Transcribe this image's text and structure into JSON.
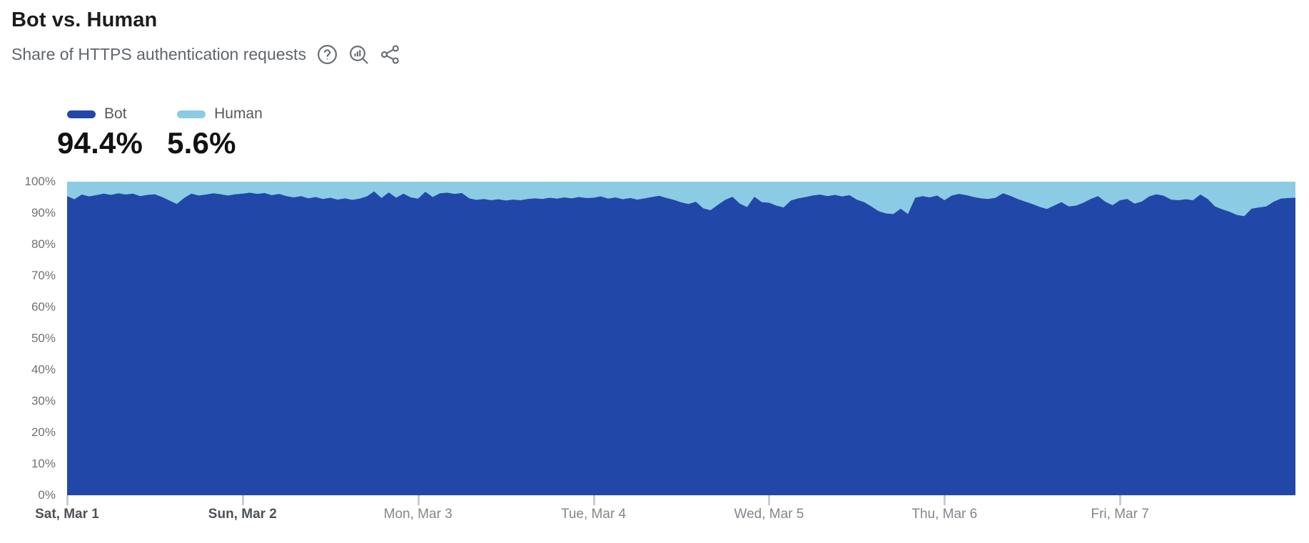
{
  "header": {
    "title": "Bot vs. Human",
    "subtitle": "Share of HTTPS authentication requests",
    "icons": [
      {
        "name": "help-icon",
        "meaning": "help"
      },
      {
        "name": "explore-data-icon",
        "meaning": "view chart data"
      },
      {
        "name": "share-icon",
        "meaning": "share"
      }
    ],
    "icon_color": "#6a6f75"
  },
  "legend": {
    "items": [
      {
        "label": "Bot",
        "value": "94.4%",
        "color": "#2148a8"
      },
      {
        "label": "Human",
        "value": "5.6%",
        "color": "#8bcbe4"
      }
    ]
  },
  "chart_data": {
    "type": "area",
    "stacked": true,
    "unit": "percent",
    "title": "Bot vs. Human",
    "subtitle": "Share of HTTPS authentication requests",
    "ylim": [
      0,
      100
    ],
    "grid": false,
    "legend_position": "top-left",
    "x_range": "Sat, Mar 1 00:00 to Sat, Mar 8 00:00",
    "points_per_day": 24,
    "y_ticks": [
      "100%",
      "90%",
      "80%",
      "70%",
      "60%",
      "50%",
      "40%",
      "30%",
      "20%",
      "10%",
      "0%"
    ],
    "x_ticks": [
      {
        "label": "Sat, Mar 1",
        "bold": true
      },
      {
        "label": "Sun, Mar 2",
        "bold": true
      },
      {
        "label": "Mon, Mar 3",
        "bold": false
      },
      {
        "label": "Tue, Mar 4",
        "bold": false
      },
      {
        "label": "Wed, Mar 5",
        "bold": false
      },
      {
        "label": "Thu, Mar 6",
        "bold": false
      },
      {
        "label": "Fri, Mar 7",
        "bold": false
      }
    ],
    "series": [
      {
        "name": "Bot",
        "color": "#2148a8",
        "summary": "94.4%",
        "values": [
          95.4,
          94.4,
          95.9,
          95.3,
          95.7,
          96.2,
          95.8,
          96.3,
          95.9,
          96.2,
          95.4,
          95.8,
          96.0,
          95.1,
          94.0,
          92.9,
          94.8,
          96.2,
          95.6,
          95.9,
          96.3,
          96.0,
          95.6,
          96.0,
          96.2,
          96.5,
          96.1,
          96.4,
          95.7,
          96.1,
          95.4,
          95.0,
          95.4,
          94.7,
          95.1,
          94.5,
          94.9,
          94.3,
          94.7,
          94.2,
          94.6,
          95.3,
          96.9,
          94.8,
          96.6,
          94.9,
          96.2,
          95.0,
          94.6,
          96.8,
          95.1,
          96.3,
          96.5,
          96.1,
          96.4,
          94.7,
          94.2,
          94.5,
          94.1,
          94.4,
          94.0,
          94.3,
          94.1,
          94.5,
          94.7,
          94.5,
          94.9,
          94.6,
          95.0,
          94.7,
          95.1,
          94.8,
          94.9,
          95.3,
          94.6,
          95.0,
          94.4,
          94.8,
          94.3,
          94.7,
          95.1,
          95.5,
          94.8,
          94.2,
          93.4,
          92.9,
          93.6,
          91.5,
          90.9,
          92.6,
          94.2,
          95.2,
          93.0,
          91.9,
          95.2,
          93.5,
          93.3,
          92.4,
          91.8,
          94.0,
          94.7,
          95.1,
          95.6,
          95.9,
          95.4,
          95.8,
          95.3,
          95.7,
          94.3,
          93.5,
          92.1,
          90.6,
          89.9,
          89.7,
          91.4,
          89.7,
          94.9,
          95.4,
          95.0,
          95.6,
          94.1,
          95.6,
          96.1,
          95.7,
          95.1,
          94.7,
          94.5,
          94.9,
          96.3,
          95.5,
          94.5,
          93.7,
          92.9,
          92.0,
          91.3,
          92.4,
          93.5,
          92.1,
          92.4,
          93.3,
          94.5,
          95.4,
          93.6,
          92.5,
          94.1,
          94.5,
          93.0,
          93.7,
          95.3,
          96.0,
          95.5,
          94.3,
          94.1,
          94.4,
          94.1,
          95.9,
          94.5,
          92.1,
          91.2,
          90.4,
          89.4,
          89.0,
          91.4,
          91.8,
          92.1,
          93.6,
          94.6,
          94.8,
          94.9
        ]
      },
      {
        "name": "Human",
        "color": "#8bcbe4",
        "summary": "5.6%",
        "values_note": "Human = 100 - Bot at every point (stacked to 100%)"
      }
    ]
  },
  "layout_colors": {
    "y_label": "#6e7276",
    "x_label_weekday": "#82868b",
    "x_label_weekend": "#4e5257",
    "tick": "#c9ccd0"
  }
}
